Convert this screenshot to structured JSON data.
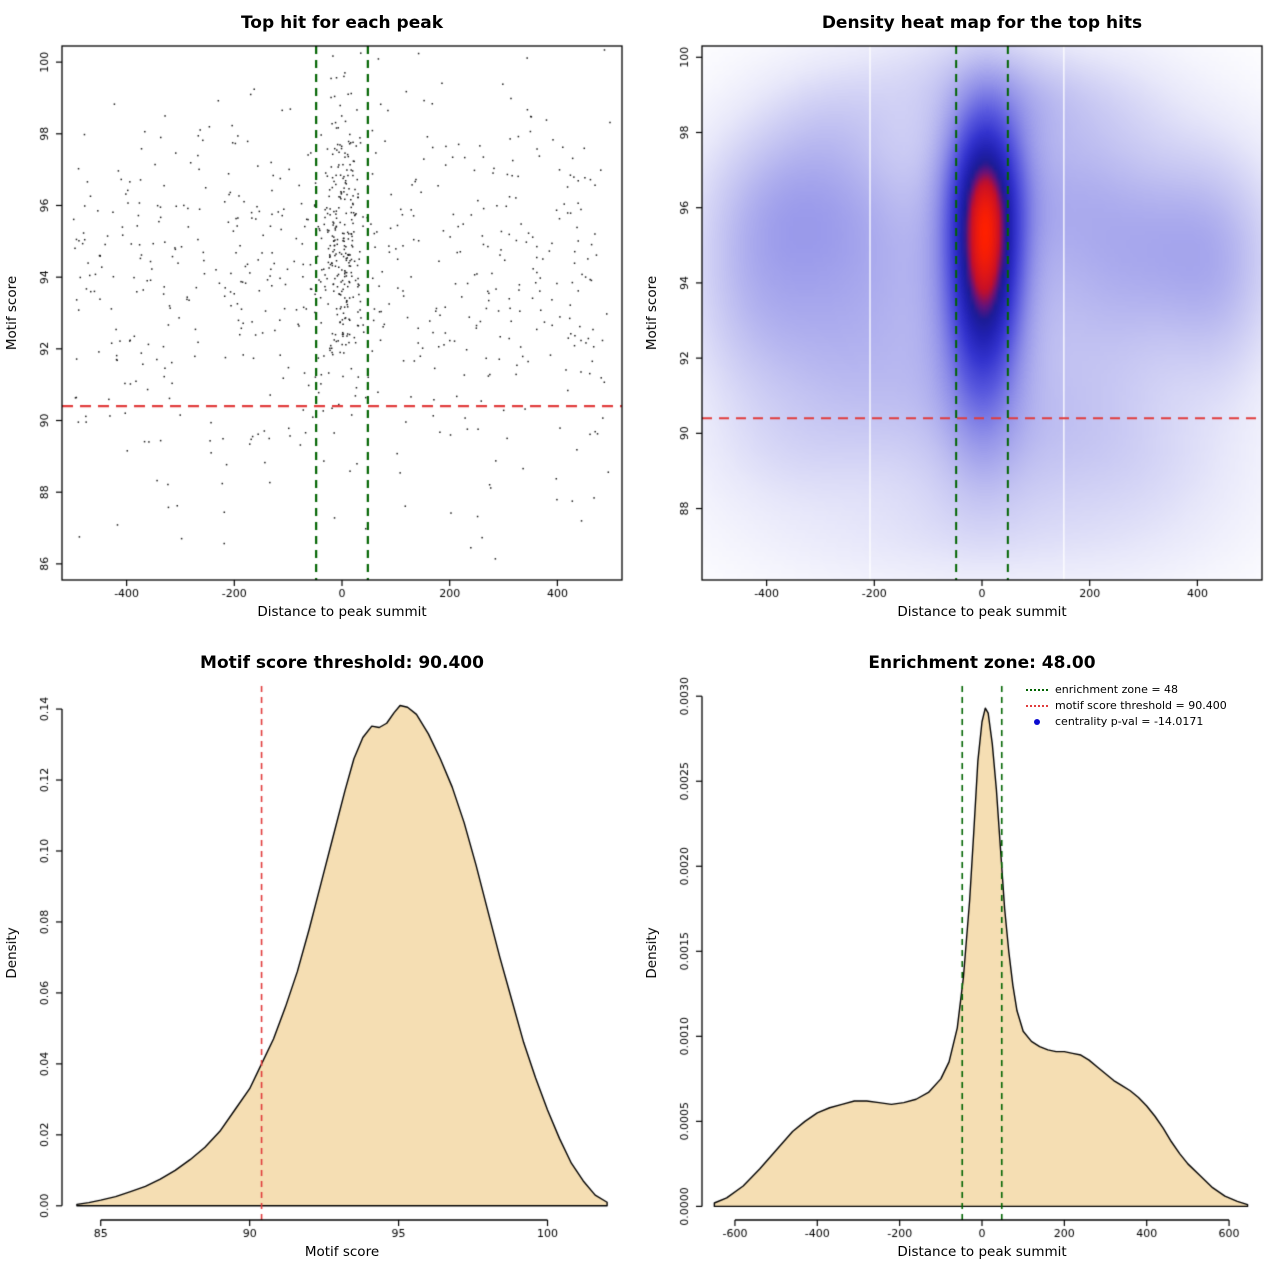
{
  "colors": {
    "threshold_red": "#e13c3c",
    "zone_green": "#006400",
    "density_fill": "#f5deb3",
    "curve_black": "#000000",
    "point_black": "#1a1a1a",
    "legend_dot_blue": "#0a0ad0"
  },
  "chart_data": [
    {
      "id": "top-hit-scatter",
      "type": "scatter",
      "title": "Top hit for each peak",
      "xlabel": "Distance to peak summit",
      "ylabel": "Motif score",
      "xlim": [
        -520,
        520
      ],
      "ylim": [
        85.55,
        100.45
      ],
      "xticks": [
        -400,
        -200,
        0,
        200,
        400
      ],
      "xtick_labels": [
        "-400",
        "-200",
        "0",
        "200",
        "400"
      ],
      "yticks": [
        86,
        88,
        90,
        92,
        94,
        96,
        98,
        100
      ],
      "ytick_labels": [
        "86",
        "88",
        "90",
        "92",
        "94",
        "96",
        "98",
        "100"
      ],
      "threshold_line_y": 90.4,
      "zone_lines_x": [
        -48,
        48
      ],
      "points_gen": {
        "seed": 20240421,
        "n_broad": 600,
        "broad_y_mean": 94.6,
        "broad_y_sd": 2.6,
        "n_central": 250,
        "central_x_sd": 20,
        "central_y_mean": 95.0,
        "central_y_sd": 2.2,
        "n_low": 45
      }
    },
    {
      "id": "top-hit-density-heatmap",
      "type": "heatmap",
      "title": "Density heat map for the top hits",
      "xlabel": "Distance to peak summit",
      "ylabel": "Motif score",
      "xlim": [
        -520,
        520
      ],
      "ylim": [
        86.1,
        100.3
      ],
      "xticks": [
        -400,
        -200,
        0,
        200,
        400
      ],
      "xtick_labels": [
        "-400",
        "-200",
        "0",
        "200",
        "400"
      ],
      "yticks": [
        88,
        90,
        92,
        94,
        96,
        98,
        100
      ],
      "ytick_labels": [
        "88",
        "90",
        "92",
        "94",
        "96",
        "98",
        "100"
      ],
      "threshold_line_y": 90.4,
      "zone_lines_x": [
        -48,
        48
      ],
      "white_lines": [
        -208,
        152
      ],
      "gamma": 0.75,
      "colormap": [
        [
          0,
          "#ffffff"
        ],
        [
          0.1,
          "#e8e8fa"
        ],
        [
          0.22,
          "#c3c3f2"
        ],
        [
          0.36,
          "#9292e9"
        ],
        [
          0.5,
          "#5b5bdf"
        ],
        [
          0.62,
          "#3434cf"
        ],
        [
          0.72,
          "#2121b2"
        ],
        [
          0.79,
          "#1c1c96"
        ],
        [
          0.845,
          "#6a1278"
        ],
        [
          0.895,
          "#c40f2a"
        ],
        [
          1,
          "#ff2000"
        ]
      ],
      "blobs": [
        [
          8,
          95.2,
          40,
          1.9,
          1.0
        ],
        [
          0,
          93.6,
          48,
          2.4,
          0.8
        ],
        [
          5,
          96.9,
          52,
          1.4,
          0.55
        ],
        [
          0,
          95.0,
          95,
          3.0,
          0.32
        ],
        [
          -330,
          96.3,
          115,
          1.6,
          0.3
        ],
        [
          -225,
          94.6,
          110,
          2.1,
          0.25
        ],
        [
          -425,
          94.3,
          85,
          2.0,
          0.22
        ],
        [
          -300,
          92.4,
          150,
          1.7,
          0.18
        ],
        [
          330,
          95.4,
          130,
          1.8,
          0.3
        ],
        [
          230,
          93.1,
          120,
          2.1,
          0.22
        ],
        [
          445,
          93.9,
          75,
          2.2,
          0.22
        ],
        [
          160,
          96.6,
          85,
          1.4,
          0.18
        ],
        [
          -120,
          90.8,
          160,
          1.4,
          0.15
        ],
        [
          150,
          90.2,
          140,
          1.3,
          0.14
        ],
        [
          -350,
          89.4,
          130,
          1.2,
          0.11
        ],
        [
          300,
          88.9,
          140,
          1.2,
          0.11
        ],
        [
          0,
          88.7,
          120,
          1.1,
          0.1
        ],
        [
          -150,
          87.2,
          200,
          1.0,
          0.08
        ],
        [
          200,
          87.1,
          180,
          1.0,
          0.07
        ],
        [
          -80,
          99.4,
          130,
          1.0,
          0.12
        ],
        [
          230,
          98.8,
          100,
          1.1,
          0.12
        ],
        [
          -270,
          98.4,
          90,
          1.0,
          0.1
        ],
        [
          80,
          98.9,
          80,
          0.9,
          0.15
        ]
      ]
    },
    {
      "id": "motif-score-density",
      "type": "area",
      "title": "Motif score threshold: 90.400",
      "xlabel": "Motif score",
      "ylabel": "Density",
      "xlim": [
        83.7,
        102.5
      ],
      "ylim": [
        -0.004,
        0.1465
      ],
      "xticks": [
        85,
        90,
        95,
        100
      ],
      "xtick_labels": [
        "85",
        "90",
        "95",
        "100"
      ],
      "yticks": [
        0,
        0.02,
        0.04,
        0.06,
        0.08,
        0.1,
        0.12,
        0.14
      ],
      "ytick_labels": [
        "0.00",
        "0.02",
        "0.04",
        "0.06",
        "0.08",
        "0.10",
        "0.12",
        "0.14"
      ],
      "threshold_line_x": 90.4,
      "curve": [
        [
          84.2,
          0.0004
        ],
        [
          84.6,
          0.0009
        ],
        [
          85,
          0.0016
        ],
        [
          85.5,
          0.0026
        ],
        [
          86,
          0.004
        ],
        [
          86.5,
          0.0055
        ],
        [
          87,
          0.0075
        ],
        [
          87.5,
          0.01
        ],
        [
          88,
          0.013
        ],
        [
          88.5,
          0.0165
        ],
        [
          89,
          0.021
        ],
        [
          89.5,
          0.027
        ],
        [
          90,
          0.033
        ],
        [
          90.4,
          0.04
        ],
        [
          90.8,
          0.047
        ],
        [
          91.2,
          0.056
        ],
        [
          91.6,
          0.066
        ],
        [
          92,
          0.078
        ],
        [
          92.4,
          0.091
        ],
        [
          92.8,
          0.104
        ],
        [
          93.2,
          0.117
        ],
        [
          93.5,
          0.126
        ],
        [
          93.8,
          0.132
        ],
        [
          94.1,
          0.1352
        ],
        [
          94.35,
          0.1348
        ],
        [
          94.6,
          0.136
        ],
        [
          94.85,
          0.139
        ],
        [
          95.05,
          0.141
        ],
        [
          95.3,
          0.1405
        ],
        [
          95.6,
          0.1385
        ],
        [
          96,
          0.133
        ],
        [
          96.4,
          0.126
        ],
        [
          96.8,
          0.118
        ],
        [
          97.2,
          0.108
        ],
        [
          97.6,
          0.096
        ],
        [
          98,
          0.083
        ],
        [
          98.4,
          0.07
        ],
        [
          98.8,
          0.058
        ],
        [
          99.2,
          0.046
        ],
        [
          99.6,
          0.036
        ],
        [
          100,
          0.027
        ],
        [
          100.4,
          0.019
        ],
        [
          100.8,
          0.012
        ],
        [
          101.2,
          0.007
        ],
        [
          101.6,
          0.003
        ],
        [
          102,
          0.001
        ]
      ]
    },
    {
      "id": "distance-density",
      "type": "area",
      "title": "Enrichment zone: 48.00",
      "xlabel": "Distance to peak summit",
      "ylabel": "Density",
      "xlim": [
        -680,
        680
      ],
      "ylim": [
        -8e-05,
        0.00306
      ],
      "xticks": [
        -600,
        -400,
        -200,
        0,
        200,
        400,
        600
      ],
      "xtick_labels": [
        "-600",
        "-400",
        "-200",
        "0",
        "200",
        "400",
        "600"
      ],
      "yticks": [
        0,
        0.0005,
        0.001,
        0.0015,
        0.002,
        0.0025,
        0.003
      ],
      "ytick_labels": [
        "0.0000",
        "0.0005",
        "0.0010",
        "0.0015",
        "0.0020",
        "0.0025",
        "0.0030"
      ],
      "zone_lines_x": [
        -48,
        48
      ],
      "legend": [
        {
          "style": "dotted-green",
          "label": "enrichment zone = 48"
        },
        {
          "style": "dotted-red",
          "label": "motif score threshold = 90.400"
        },
        {
          "style": "blue-dot",
          "label": "centrality p-val = -14.0171"
        }
      ],
      "curve": [
        [
          -650,
          2e-05
        ],
        [
          -620,
          5e-05
        ],
        [
          -580,
          0.00012
        ],
        [
          -540,
          0.00022
        ],
        [
          -500,
          0.00033
        ],
        [
          -460,
          0.00044
        ],
        [
          -430,
          0.0005
        ],
        [
          -400,
          0.00055
        ],
        [
          -370,
          0.00058
        ],
        [
          -340,
          0.0006
        ],
        [
          -310,
          0.00062
        ],
        [
          -280,
          0.00062
        ],
        [
          -250,
          0.00061
        ],
        [
          -220,
          0.0006
        ],
        [
          -190,
          0.00061
        ],
        [
          -160,
          0.00063
        ],
        [
          -130,
          0.00067
        ],
        [
          -100,
          0.00075
        ],
        [
          -80,
          0.00085
        ],
        [
          -60,
          0.00105
        ],
        [
          -45,
          0.00135
        ],
        [
          -30,
          0.0018
        ],
        [
          -20,
          0.0022
        ],
        [
          -10,
          0.00262
        ],
        [
          0,
          0.00285
        ],
        [
          8,
          0.00293
        ],
        [
          15,
          0.0029
        ],
        [
          25,
          0.00272
        ],
        [
          35,
          0.00245
        ],
        [
          45,
          0.0021
        ],
        [
          55,
          0.00175
        ],
        [
          65,
          0.0015
        ],
        [
          75,
          0.0013
        ],
        [
          85,
          0.00115
        ],
        [
          100,
          0.00103
        ],
        [
          120,
          0.00097
        ],
        [
          140,
          0.00094
        ],
        [
          160,
          0.00092
        ],
        [
          180,
          0.00091
        ],
        [
          200,
          0.00091
        ],
        [
          220,
          0.0009
        ],
        [
          240,
          0.00089
        ],
        [
          260,
          0.00086
        ],
        [
          280,
          0.00082
        ],
        [
          300,
          0.00078
        ],
        [
          320,
          0.00074
        ],
        [
          340,
          0.00071
        ],
        [
          360,
          0.00068
        ],
        [
          380,
          0.00064
        ],
        [
          400,
          0.00059
        ],
        [
          420,
          0.00053
        ],
        [
          440,
          0.00046
        ],
        [
          460,
          0.00038
        ],
        [
          480,
          0.00031
        ],
        [
          500,
          0.00025
        ],
        [
          530,
          0.00018
        ],
        [
          560,
          0.00011
        ],
        [
          590,
          6e-05
        ],
        [
          620,
          3e-05
        ],
        [
          645,
          1e-05
        ]
      ]
    }
  ]
}
